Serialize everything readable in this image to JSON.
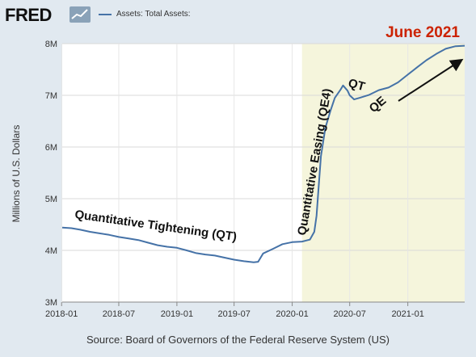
{
  "header": {
    "brand": "FRED",
    "legend_label": "Assets: Total Assets:",
    "brand_icon": "line-chart-icon"
  },
  "annotations": {
    "date_label": "June 2021",
    "qt_label": "Quantitative Tightening (QT)",
    "qe4_label": "Quantitative Easing (QE4)",
    "qt2_label": "QT",
    "qe_label": "QE"
  },
  "source": "Source: Board of Governors of the Federal Reserve System (US)",
  "colors": {
    "series": "#4572a7",
    "shade": "#f5f5dc",
    "accent": "#cc2200"
  },
  "chart_data": {
    "type": "line",
    "xlabel": "",
    "ylabel": "Millions of U.S. Dollars",
    "ylim": [
      3,
      8
    ],
    "yticks": [
      3,
      4,
      5,
      6,
      7,
      8
    ],
    "ytick_labels": [
      "3M",
      "4M",
      "5M",
      "6M",
      "7M",
      "8M"
    ],
    "xlim": [
      "2018-01-03",
      "2021-06-30"
    ],
    "xticks": [
      "2018-01",
      "2018-07",
      "2019-01",
      "2019-07",
      "2020-01",
      "2020-07",
      "2021-01"
    ],
    "recession_shade": [
      "2020-02-01",
      "2021-06-30"
    ],
    "grid": true,
    "series": [
      {
        "name": "Assets: Total Assets:",
        "x": [
          "2018-01-03",
          "2018-02-01",
          "2018-03-01",
          "2018-04-01",
          "2018-05-01",
          "2018-06-01",
          "2018-07-01",
          "2018-08-01",
          "2018-09-01",
          "2018-10-01",
          "2018-11-01",
          "2018-12-01",
          "2019-01-01",
          "2019-02-01",
          "2019-03-01",
          "2019-04-01",
          "2019-05-01",
          "2019-06-01",
          "2019-07-01",
          "2019-08-01",
          "2019-09-01",
          "2019-09-15",
          "2019-10-01",
          "2019-11-01",
          "2019-12-01",
          "2020-01-01",
          "2020-02-01",
          "2020-02-26",
          "2020-03-11",
          "2020-03-18",
          "2020-03-25",
          "2020-04-01",
          "2020-04-15",
          "2020-05-01",
          "2020-05-15",
          "2020-06-01",
          "2020-06-10",
          "2020-06-24",
          "2020-07-01",
          "2020-07-15",
          "2020-08-01",
          "2020-09-01",
          "2020-10-01",
          "2020-11-01",
          "2020-12-01",
          "2021-01-01",
          "2021-02-01",
          "2021-03-01",
          "2021-04-01",
          "2021-05-01",
          "2021-06-01",
          "2021-06-30"
        ],
        "y": [
          4.44,
          4.43,
          4.4,
          4.36,
          4.33,
          4.3,
          4.26,
          4.23,
          4.2,
          4.15,
          4.1,
          4.07,
          4.05,
          4.0,
          3.95,
          3.92,
          3.9,
          3.86,
          3.82,
          3.79,
          3.77,
          3.78,
          3.94,
          4.03,
          4.12,
          4.16,
          4.17,
          4.21,
          4.36,
          4.67,
          5.25,
          5.82,
          6.37,
          6.7,
          6.95,
          7.1,
          7.19,
          7.09,
          7.0,
          6.92,
          6.95,
          7.01,
          7.1,
          7.15,
          7.25,
          7.4,
          7.55,
          7.68,
          7.8,
          7.9,
          7.95,
          7.96
        ]
      }
    ]
  }
}
